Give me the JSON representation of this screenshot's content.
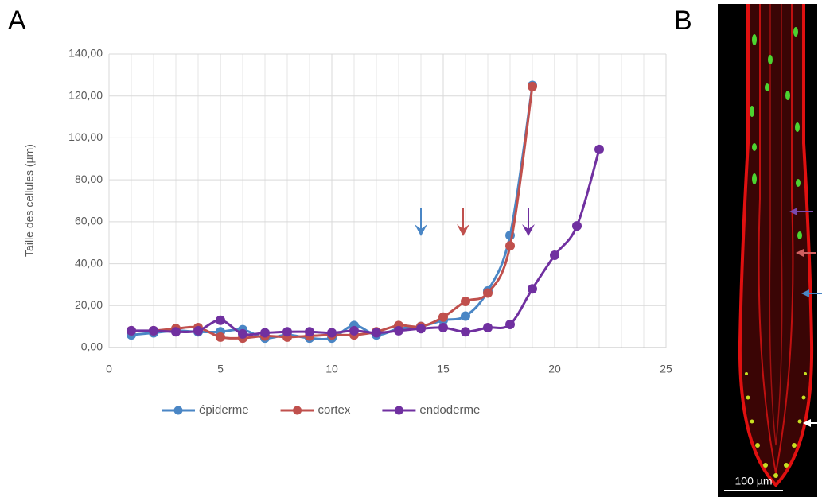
{
  "chart_data": {
    "type": "line",
    "panel_labels": [
      "A",
      "B"
    ],
    "ylabel": "Taille des cellules (µm)",
    "xlim": [
      0,
      25
    ],
    "xticks": [
      0,
      5,
      10,
      15,
      20,
      25
    ],
    "ylim": [
      0,
      140
    ],
    "yticks": [
      {
        "value": 0,
        "label": "0,00"
      },
      {
        "value": 20,
        "label": "20,00"
      },
      {
        "value": 40,
        "label": "40,00"
      },
      {
        "value": 60,
        "label": "60,00"
      },
      {
        "value": 80,
        "label": "80,00"
      },
      {
        "value": 100,
        "label": "100,00"
      },
      {
        "value": 120,
        "label": "120,00"
      },
      {
        "value": 140,
        "label": "140,00"
      }
    ],
    "grid": true,
    "x_minor_grid_step": 1,
    "legend": "bottom",
    "smooth": true,
    "series": [
      {
        "name": "épiderme",
        "color": "#4a86c5",
        "x": [
          1,
          2,
          3,
          4,
          5,
          6,
          7,
          8,
          9,
          10,
          11,
          12,
          13,
          14,
          15,
          16,
          17,
          18,
          19
        ],
        "values": [
          6,
          7,
          8,
          7.5,
          7.5,
          8.5,
          4.5,
          6,
          4.5,
          4.5,
          10.5,
          6,
          9,
          10,
          13,
          15,
          27,
          53.5,
          125
        ]
      },
      {
        "name": "cortex",
        "color": "#c0504d",
        "x": [
          1,
          2,
          3,
          4,
          5,
          6,
          7,
          8,
          9,
          10,
          11,
          12,
          13,
          14,
          15,
          16,
          17,
          18,
          19
        ],
        "values": [
          8,
          8,
          9,
          9.5,
          5,
          4.5,
          5.5,
          5,
          5.5,
          6,
          6,
          7.5,
          10.5,
          10,
          14.5,
          22,
          26,
          48.5,
          124.5
        ]
      },
      {
        "name": "endoderme",
        "color": "#7030a0",
        "x": [
          1,
          2,
          3,
          4,
          5,
          6,
          7,
          8,
          9,
          10,
          11,
          12,
          13,
          14,
          15,
          16,
          17,
          18,
          19,
          20,
          21,
          22
        ],
        "values": [
          8,
          8,
          7.5,
          8,
          13,
          6.5,
          7,
          7.5,
          7.5,
          7,
          8,
          7,
          8,
          9,
          9.5,
          7.5,
          9.5,
          11,
          28,
          44,
          58,
          94.5
        ]
      }
    ],
    "scale_bar_label": "100 µm"
  }
}
